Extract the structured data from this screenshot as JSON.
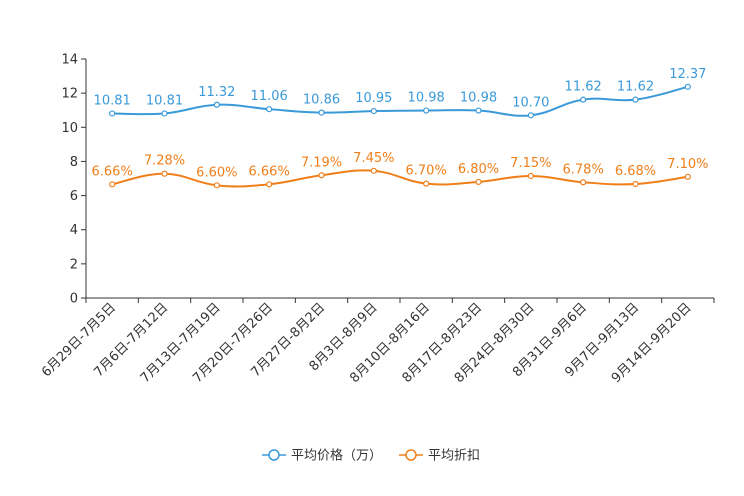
{
  "chart_data": {
    "type": "line",
    "title": "",
    "xlabel": "",
    "ylabel": "",
    "ylim": [
      0,
      14
    ],
    "yticks": [
      0,
      2,
      4,
      6,
      8,
      10,
      12,
      14
    ],
    "grid": false,
    "legend_position": "bottom-center",
    "categories": [
      "6月29日-7月5日",
      "7月6日-7月12日",
      "7月13日-7月19日",
      "7月20日-7月26日",
      "7月27日-8月2日",
      "8月3日-8月9日",
      "8月10日-8月16日",
      "8月17日-8月23日",
      "8月24日-8月30日",
      "8月31日-9月6日",
      "9月7日-9月13日",
      "9月14日-9月20日"
    ],
    "series": [
      {
        "name": "平均价格（万）",
        "color": "#3a9ad9",
        "values": [
          10.81,
          10.81,
          11.32,
          11.06,
          10.86,
          10.95,
          10.98,
          10.98,
          10.7,
          11.62,
          11.62,
          12.37
        ],
        "labels": [
          "10.81",
          "10.81",
          "11.32",
          "11.06",
          "10.86",
          "10.95",
          "10.98",
          "10.98",
          "10.70",
          "11.62",
          "11.62",
          "12.37"
        ]
      },
      {
        "name": "平均折扣",
        "color": "#f07f1a",
        "values": [
          6.66,
          7.28,
          6.6,
          6.66,
          7.19,
          7.45,
          6.7,
          6.8,
          7.15,
          6.78,
          6.68,
          7.1
        ],
        "labels": [
          "6.66%",
          "7.28%",
          "6.60%",
          "6.66%",
          "7.19%",
          "7.45%",
          "6.70%",
          "6.80%",
          "7.15%",
          "6.78%",
          "6.68%",
          "7.10%"
        ]
      }
    ]
  }
}
